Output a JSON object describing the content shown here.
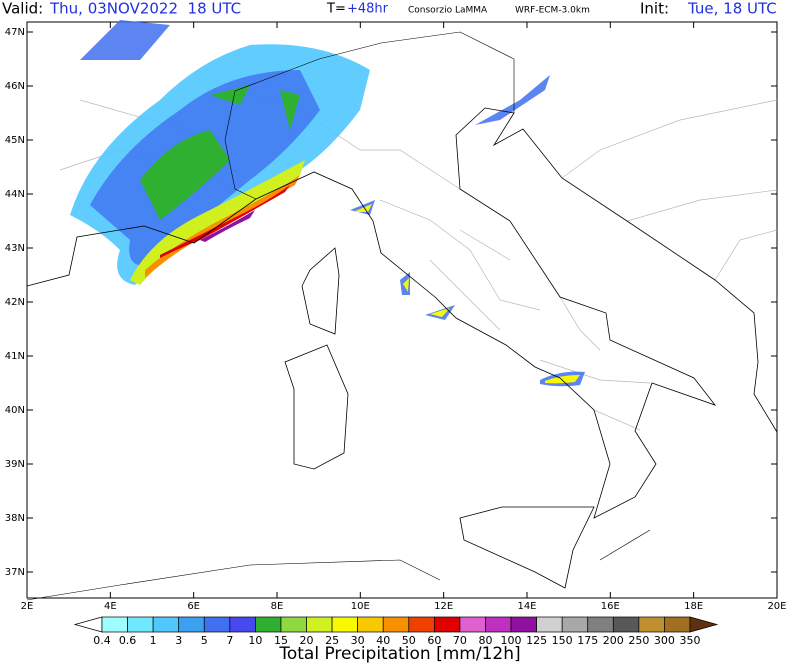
{
  "header": {
    "valid_label": "Valid:",
    "valid_time": "Thu, 03NOV2022  18 UTC",
    "t_label": "T=",
    "t_value": "+48hr",
    "center": "Consorzio LaMMA",
    "model": "WRF-ECM-3.0km",
    "init_label": "Init:",
    "init_time": "Tue, 18 UTC"
  },
  "map": {
    "lat_labels": [
      "47N",
      "46N",
      "45N",
      "44N",
      "43N",
      "42N",
      "41N",
      "40N",
      "39N",
      "38N",
      "37N"
    ],
    "lon_labels": [
      "2E",
      "4E",
      "6E",
      "8E",
      "10E",
      "12E",
      "14E",
      "16E",
      "18E",
      "20E"
    ]
  },
  "colorbar": {
    "title": "Total Precipitation [mm/12h]",
    "labels": [
      "0.4",
      "0.6",
      "1",
      "3",
      "5",
      "7",
      "10",
      "15",
      "20",
      "25",
      "30",
      "40",
      "50",
      "60",
      "70",
      "80",
      "100",
      "125",
      "150",
      "175",
      "200",
      "250",
      "300",
      "350"
    ],
    "colors": [
      "#ffffff",
      "#9ffcff",
      "#70e8ff",
      "#50c8ff",
      "#3ca0f0",
      "#4070f0",
      "#4848f0",
      "#30b030",
      "#90d840",
      "#d0f020",
      "#f8f800",
      "#f8c800",
      "#f89000",
      "#f04000",
      "#e00000",
      "#e060d0",
      "#c030c0",
      "#9010a0",
      "#d0d0d0",
      "#a8a8a8",
      "#808080",
      "#585858",
      "#c09030",
      "#a07020",
      "#603010"
    ]
  }
}
